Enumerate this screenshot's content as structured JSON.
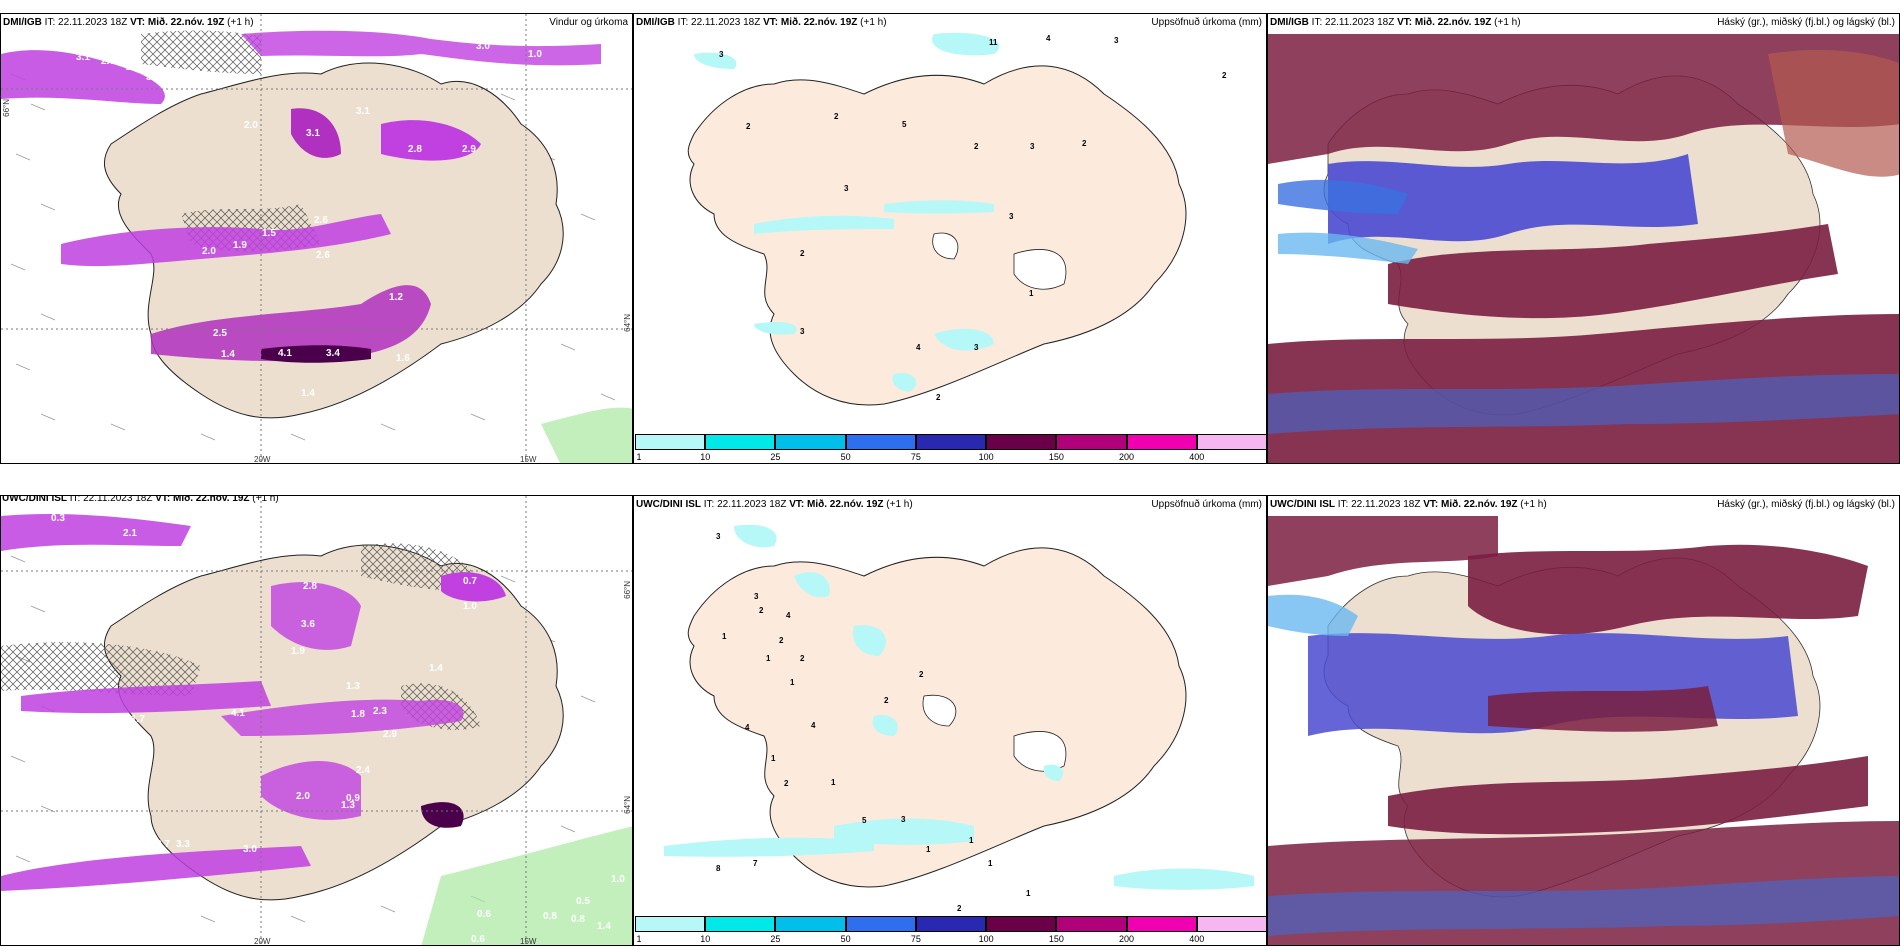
{
  "panels": {
    "p1": {
      "source": "DMI/IGB",
      "it": "IT: 22.11.2023 18Z",
      "vt_label": "VT:",
      "vt": "Mið. 22.nóv. 19Z",
      "lead": "(+1 h)",
      "title": "Vindur og úrkoma",
      "axis_lon_1": "20W",
      "axis_lon_2": "15W",
      "axis_lat_1": "66°N",
      "axis_lat_2": "64°N",
      "values": [
        "3.1",
        "2.7",
        "2.7",
        "3.4",
        "3.0",
        "1.0",
        "1.9",
        "2.0",
        "3.1",
        "3.1",
        "2.6",
        "2.8",
        "2.9",
        "1.5",
        "2.6",
        "1.9",
        "2.0",
        "1.2",
        "2.5",
        "4.1",
        "3.4",
        "1.6",
        "1.2",
        "1.4",
        "1.4"
      ]
    },
    "p2": {
      "source": "DMI/IGB",
      "it": "IT: 22.11.2023 18Z",
      "vt_label": "VT:",
      "vt": "Mið. 22.nóv. 19Z",
      "lead": "(+1 h)",
      "title": "Uppsöfnuð úrkoma (mm)",
      "values": [
        "3",
        "11",
        "4",
        "3",
        "2",
        "2",
        "2",
        "5",
        "2",
        "3",
        "3",
        "2",
        "3",
        "2",
        "1",
        "3",
        "4",
        "3",
        "2"
      ]
    },
    "p3": {
      "source": "DMI/IGB",
      "it": "IT: 22.11.2023 18Z",
      "vt_label": "VT:",
      "vt": "Mið. 22.nóv. 19Z",
      "lead": "(+1 h)",
      "title": "Háský (gr.), miðský (fj.bl.) og lágský (bl.)"
    },
    "p4": {
      "source": "UWC/DINI ISL",
      "it": "IT: 22.11.2023 18Z",
      "vt_label": "VT:",
      "vt": "Mið. 22.nóv. 19Z",
      "lead": "(+1 h)",
      "axis_lon_1": "20W",
      "axis_lon_2": "15W",
      "axis_lat_1": "66°N",
      "axis_lat_2": "64°N",
      "values": [
        "0.3",
        "2.1",
        "0.3",
        "0.9",
        "0.7",
        "1.0",
        "2.8",
        "3.6",
        "1.9",
        "1.4",
        "1.7",
        "4.1",
        "1.3",
        "2.3",
        "2.9",
        "1.8",
        "2.4",
        "0.9",
        "2.0",
        "1.3",
        "2.7",
        "3.3",
        "3.0",
        "0.6",
        "0.8",
        "1.0",
        "0.6",
        "0.8",
        "0.5",
        "1.4"
      ]
    },
    "p5": {
      "source": "UWC/DINI ISL",
      "it": "IT: 22.11.2023 18Z",
      "vt_label": "VT:",
      "vt": "Mið. 22.nóv. 19Z",
      "lead": "(+1 h)",
      "title": "Uppsöfnuð úrkoma (mm)",
      "values": [
        "3",
        "3",
        "2",
        "1",
        "4",
        "2",
        "2",
        "1",
        "1",
        "2",
        "2",
        "4",
        "4",
        "2",
        "1",
        "1",
        "7",
        "8",
        "5",
        "3",
        "1",
        "1",
        "1",
        "1",
        "2"
      ]
    },
    "p6": {
      "source": "UWC/DINI ISL",
      "it": "IT: 22.11.2023 18Z",
      "vt_label": "VT:",
      "vt": "Mið. 22.nóv. 19Z",
      "lead": "(+1 h)",
      "title": "Háský (gr.), miðský (fj.bl.) og lágský (bl.)"
    }
  },
  "colorbar": {
    "colors": [
      "#b6f7f7",
      "#00e8e8",
      "#00bfea",
      "#2e6ff0",
      "#2828b0",
      "#6a0048",
      "#b0007a",
      "#f000b0",
      "#f6b6f2"
    ],
    "labels": [
      "1",
      "10",
      "25",
      "50",
      "75",
      "100",
      "150",
      "200",
      "400"
    ]
  }
}
